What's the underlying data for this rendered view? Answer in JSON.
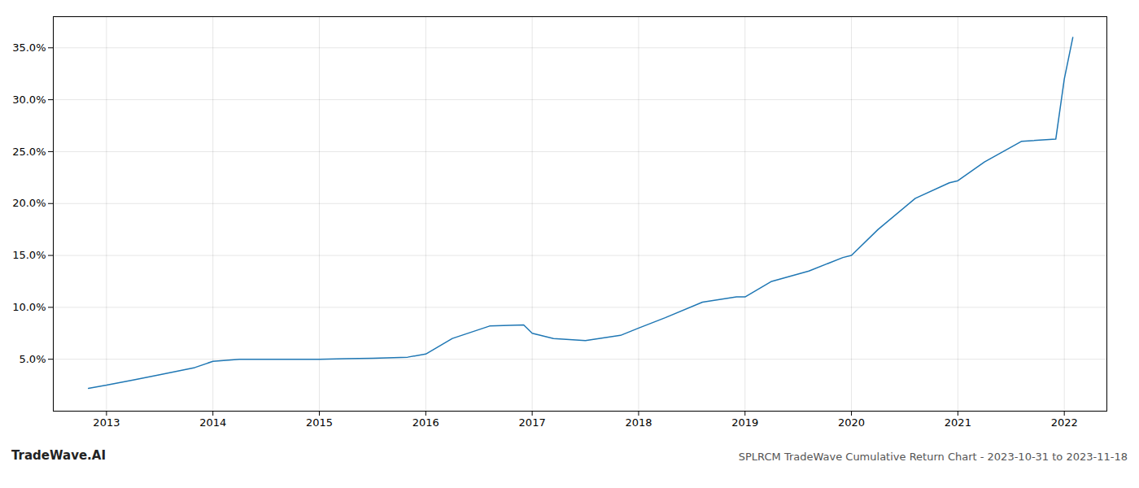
{
  "chart_data": {
    "type": "line",
    "title": "SPLRCM TradeWave Cumulative Return Chart - 2023-10-31 to 2023-11-18",
    "annotations": [
      "TradeWave.AI"
    ],
    "x": [
      2012.83,
      2013.0,
      2013.25,
      2013.5,
      2013.83,
      2014.0,
      2014.25,
      2014.6,
      2014.92,
      2015.0,
      2015.25,
      2015.5,
      2015.83,
      2016.0,
      2016.25,
      2016.6,
      2016.92,
      2017.0,
      2017.2,
      2017.5,
      2017.83,
      2018.0,
      2018.25,
      2018.6,
      2018.92,
      2019.0,
      2019.25,
      2019.6,
      2019.92,
      2020.0,
      2020.25,
      2020.6,
      2020.92,
      2021.0,
      2021.25,
      2021.6,
      2021.92,
      2022.0,
      2022.08
    ],
    "values": [
      2.2,
      2.5,
      3.0,
      3.5,
      4.2,
      4.8,
      5.0,
      5.0,
      5.0,
      5.0,
      5.05,
      5.1,
      5.2,
      5.5,
      7.0,
      8.2,
      8.3,
      7.5,
      7.0,
      6.8,
      7.3,
      8.0,
      9.0,
      10.5,
      11.0,
      11.0,
      12.5,
      13.5,
      14.8,
      15.0,
      17.5,
      20.5,
      22.0,
      22.2,
      24.0,
      26.0,
      26.2,
      32.0,
      36.0
    ],
    "color": "#1f77b4",
    "xlim": [
      2012.5,
      2022.4
    ],
    "ylim": [
      0,
      38
    ],
    "xticks": [
      2013,
      2014,
      2015,
      2016,
      2017,
      2018,
      2019,
      2020,
      2021,
      2022
    ],
    "yticks": [
      {
        "value": 5.0,
        "label": "5.0%"
      },
      {
        "value": 10.0,
        "label": "10.0%"
      },
      {
        "value": 15.0,
        "label": "15.0%"
      },
      {
        "value": 20.0,
        "label": "20.0%"
      },
      {
        "value": 25.0,
        "label": "25.0%"
      },
      {
        "value": 30.0,
        "label": "30.0%"
      },
      {
        "value": 35.0,
        "label": "35.0%"
      }
    ],
    "grid": true
  }
}
